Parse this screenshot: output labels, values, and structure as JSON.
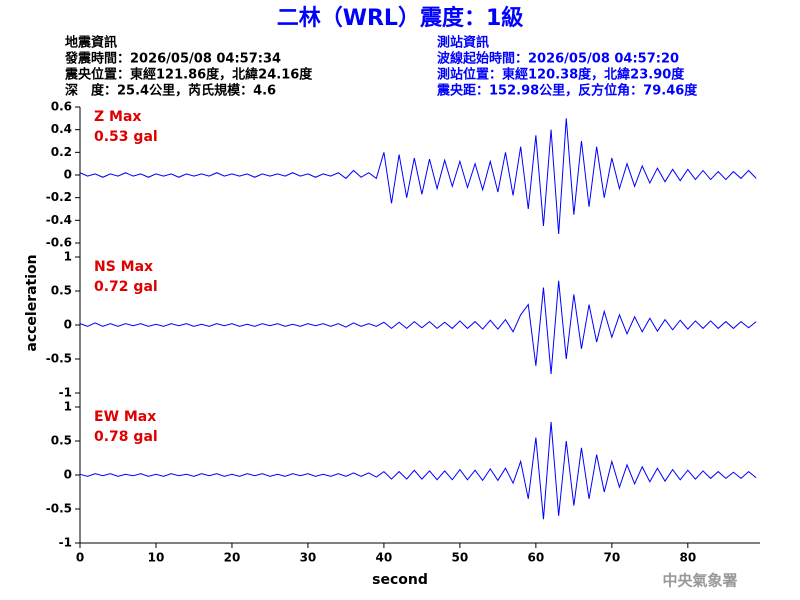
{
  "header": {
    "title": "二林（WRL）震度：1級",
    "left": [
      "地震資訊",
      "發震時間：2026/05/08 04:57:34",
      "震央位置：東經121.86度，北緯24.16度",
      "深　度：25.4公里，芮氏規模：4.6"
    ],
    "right": [
      "測站資訊",
      "波線起始時間：2026/05/08 04:57:20",
      "測站位置：東經120.38度，北緯23.90度",
      "震央距：152.98公里，反方位角：79.46度"
    ],
    "ylabel": "acceleration",
    "xlabel": "second",
    "credit": "中央氣象署"
  },
  "chart_data": [
    {
      "type": "line",
      "label": "Z Max",
      "max_label": "0.53 gal",
      "color": "#0000ff",
      "xlim": [
        0,
        89.5
      ],
      "ylim": [
        -0.6,
        0.6
      ],
      "yticks": [
        0.6,
        0.4,
        0.2,
        0,
        -0.2,
        -0.4,
        -0.6
      ],
      "x": [
        0,
        1,
        2,
        3,
        4,
        5,
        6,
        7,
        8,
        9,
        10,
        11,
        12,
        13,
        14,
        15,
        16,
        17,
        18,
        19,
        20,
        21,
        22,
        23,
        24,
        25,
        26,
        27,
        28,
        29,
        30,
        31,
        32,
        33,
        34,
        35,
        36,
        37,
        38,
        39,
        40,
        41,
        42,
        43,
        44,
        45,
        46,
        47,
        48,
        49,
        50,
        51,
        52,
        53,
        54,
        55,
        56,
        57,
        58,
        59,
        60,
        61,
        62,
        63,
        64,
        65,
        66,
        67,
        68,
        69,
        70,
        71,
        72,
        73,
        74,
        75,
        76,
        77,
        78,
        79,
        80,
        81,
        82,
        83,
        84,
        85,
        86,
        87,
        88,
        89
      ],
      "values": [
        0.02,
        -0.01,
        0.01,
        -0.02,
        0.01,
        -0.01,
        0.02,
        -0.01,
        0.01,
        -0.02,
        0.01,
        -0.01,
        0.01,
        -0.02,
        0.01,
        -0.01,
        0.01,
        -0.01,
        0.02,
        -0.01,
        0.01,
        -0.01,
        0.01,
        -0.02,
        0.01,
        -0.01,
        0.01,
        -0.01,
        0.02,
        -0.01,
        0.01,
        -0.02,
        0.01,
        -0.01,
        0.02,
        -0.03,
        0.04,
        -0.02,
        0.02,
        -0.03,
        0.2,
        -0.25,
        0.18,
        -0.2,
        0.15,
        -0.17,
        0.14,
        -0.12,
        0.13,
        -0.1,
        0.12,
        -0.11,
        0.1,
        -0.13,
        0.12,
        -0.15,
        0.2,
        -0.18,
        0.25,
        -0.3,
        0.35,
        -0.45,
        0.4,
        -0.52,
        0.5,
        -0.35,
        0.3,
        -0.28,
        0.25,
        -0.2,
        0.15,
        -0.12,
        0.1,
        -0.1,
        0.08,
        -0.07,
        0.06,
        -0.06,
        0.05,
        -0.05,
        0.05,
        -0.04,
        0.04,
        -0.04,
        0.03,
        -0.04,
        0.03,
        -0.03,
        0.04,
        -0.03
      ]
    },
    {
      "type": "line",
      "label": "NS Max",
      "max_label": "0.72 gal",
      "color": "#0000ff",
      "xlim": [
        0,
        89.5
      ],
      "ylim": [
        -1,
        1
      ],
      "yticks": [
        1,
        0.5,
        0,
        -0.5,
        -1
      ],
      "x": [
        0,
        1,
        2,
        3,
        4,
        5,
        6,
        7,
        8,
        9,
        10,
        11,
        12,
        13,
        14,
        15,
        16,
        17,
        18,
        19,
        20,
        21,
        22,
        23,
        24,
        25,
        26,
        27,
        28,
        29,
        30,
        31,
        32,
        33,
        34,
        35,
        36,
        37,
        38,
        39,
        40,
        41,
        42,
        43,
        44,
        45,
        46,
        47,
        48,
        49,
        50,
        51,
        52,
        53,
        54,
        55,
        56,
        57,
        58,
        59,
        60,
        61,
        62,
        63,
        64,
        65,
        66,
        67,
        68,
        69,
        70,
        71,
        72,
        73,
        74,
        75,
        76,
        77,
        78,
        79,
        80,
        81,
        82,
        83,
        84,
        85,
        86,
        87,
        88,
        89
      ],
      "values": [
        0.02,
        -0.02,
        0.03,
        -0.02,
        0.02,
        -0.02,
        0.02,
        -0.01,
        0.02,
        -0.02,
        0.01,
        -0.02,
        0.02,
        -0.01,
        0.02,
        -0.02,
        0.01,
        -0.02,
        0.02,
        -0.01,
        0.02,
        -0.02,
        0.01,
        -0.02,
        0.02,
        -0.01,
        0.02,
        -0.02,
        0.01,
        -0.02,
        0.02,
        -0.01,
        0.02,
        -0.02,
        0.02,
        -0.03,
        0.03,
        -0.02,
        0.02,
        -0.02,
        0.04,
        -0.05,
        0.04,
        -0.05,
        0.05,
        -0.04,
        0.05,
        -0.05,
        0.04,
        -0.05,
        0.06,
        -0.05,
        0.05,
        -0.06,
        0.07,
        -0.06,
        0.08,
        -0.1,
        0.15,
        0.3,
        -0.6,
        0.55,
        -0.72,
        0.65,
        -0.5,
        0.45,
        -0.35,
        0.3,
        -0.25,
        0.2,
        -0.18,
        0.15,
        -0.13,
        0.12,
        -0.1,
        0.1,
        -0.09,
        0.08,
        -0.07,
        0.07,
        -0.06,
        0.06,
        -0.05,
        0.06,
        -0.05,
        0.05,
        -0.05,
        0.05,
        -0.04,
        0.05
      ]
    },
    {
      "type": "line",
      "label": "EW Max",
      "max_label": "0.78 gal",
      "color": "#0000ff",
      "xlim": [
        0,
        89.5
      ],
      "ylim": [
        -1,
        1
      ],
      "yticks": [
        1,
        0.5,
        0,
        -0.5,
        -1
      ],
      "xticks": [
        0,
        10,
        20,
        30,
        40,
        50,
        60,
        70,
        80
      ],
      "x": [
        0,
        1,
        2,
        3,
        4,
        5,
        6,
        7,
        8,
        9,
        10,
        11,
        12,
        13,
        14,
        15,
        16,
        17,
        18,
        19,
        20,
        21,
        22,
        23,
        24,
        25,
        26,
        27,
        28,
        29,
        30,
        31,
        32,
        33,
        34,
        35,
        36,
        37,
        38,
        39,
        40,
        41,
        42,
        43,
        44,
        45,
        46,
        47,
        48,
        49,
        50,
        51,
        52,
        53,
        54,
        55,
        56,
        57,
        58,
        59,
        60,
        61,
        62,
        63,
        64,
        65,
        66,
        67,
        68,
        69,
        70,
        71,
        72,
        73,
        74,
        75,
        76,
        77,
        78,
        79,
        80,
        81,
        82,
        83,
        84,
        85,
        86,
        87,
        88,
        89
      ],
      "values": [
        0.01,
        -0.02,
        0.02,
        -0.01,
        0.02,
        -0.02,
        0.01,
        -0.01,
        0.02,
        -0.02,
        0.01,
        -0.02,
        0.02,
        -0.01,
        0.01,
        -0.02,
        0.02,
        -0.01,
        0.02,
        -0.02,
        0.01,
        -0.02,
        0.02,
        -0.01,
        0.02,
        -0.02,
        0.01,
        -0.02,
        0.02,
        -0.01,
        0.02,
        -0.02,
        0.01,
        -0.02,
        0.02,
        -0.02,
        0.03,
        -0.02,
        0.03,
        -0.03,
        0.05,
        -0.06,
        0.05,
        -0.06,
        0.07,
        -0.06,
        0.06,
        -0.07,
        0.06,
        -0.07,
        0.08,
        -0.07,
        0.07,
        -0.08,
        0.09,
        -0.08,
        0.1,
        -0.12,
        0.2,
        -0.35,
        0.55,
        -0.65,
        0.78,
        -0.6,
        0.5,
        -0.45,
        0.4,
        -0.35,
        0.3,
        -0.25,
        0.2,
        -0.18,
        0.15,
        -0.13,
        0.12,
        -0.1,
        0.1,
        -0.09,
        0.08,
        -0.07,
        0.07,
        -0.06,
        0.06,
        -0.05,
        0.05,
        -0.05,
        0.04,
        -0.05,
        0.05,
        -0.04
      ]
    }
  ]
}
